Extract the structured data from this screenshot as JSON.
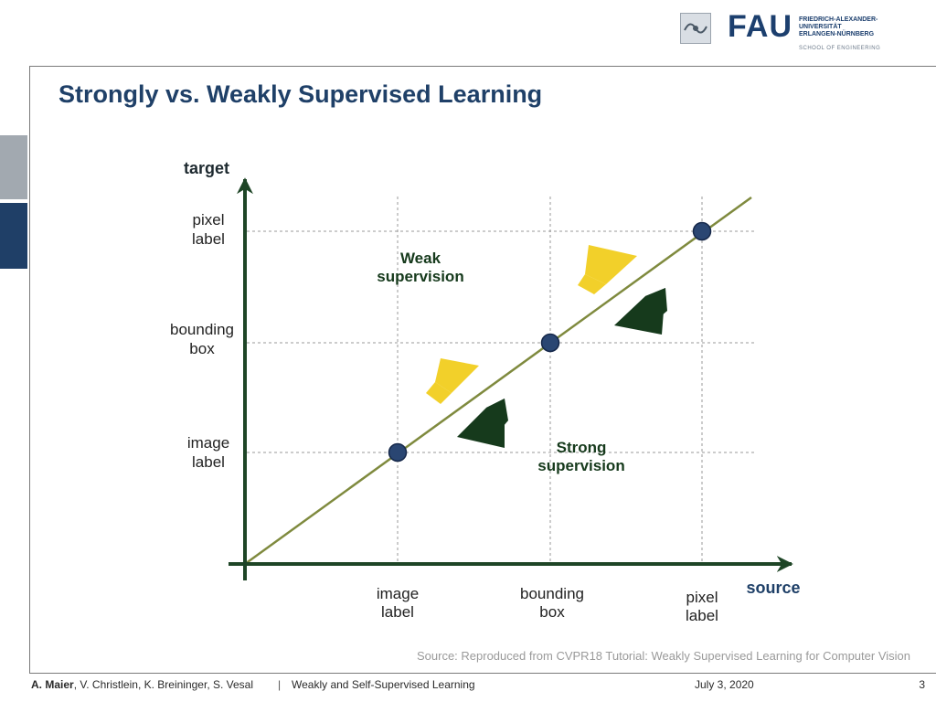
{
  "logo": {
    "wordmark": "FAU",
    "university_lines": [
      "FRIEDRICH-ALEXANDER-",
      "UNIVERSITÄT",
      "ERLANGEN-NÜRNBERG"
    ],
    "school": "SCHOOL OF ENGINEERING"
  },
  "slide": {
    "title": "Strongly vs. Weakly Supervised Learning"
  },
  "diagram": {
    "y_axis_label": "target",
    "x_axis_label": "source",
    "y_levels": [
      {
        "lines": [
          "pixel",
          "label"
        ]
      },
      {
        "lines": [
          "bounding",
          "box"
        ]
      },
      {
        "lines": [
          "image",
          "label"
        ]
      }
    ],
    "x_levels": [
      {
        "lines": [
          "image",
          "label"
        ]
      },
      {
        "lines": [
          "bounding",
          "box"
        ]
      },
      {
        "lines": [
          "pixel",
          "label"
        ]
      }
    ],
    "weak_label": [
      "Weak",
      "supervision"
    ],
    "strong_label": [
      "Strong",
      "supervision"
    ],
    "colors": {
      "axis": "#1e4526",
      "diagonal": "#7f8a3e",
      "node": "#2a4672",
      "weak_arrow": "#f2d02a",
      "strong_arrow": "#163a1c",
      "grid": "#9a9a9a"
    }
  },
  "source_note": "Source: Reproduced from CVPR18 Tutorial: Weakly Supervised Learning for Computer Vision",
  "footer": {
    "author_bold": "A. Maier",
    "author_rest": ", V. Christlein, K. Breininger, S. Vesal",
    "separator": "|",
    "course": "Weakly and Self-Supervised Learning",
    "date": "July 3, 2020",
    "page": "3"
  }
}
